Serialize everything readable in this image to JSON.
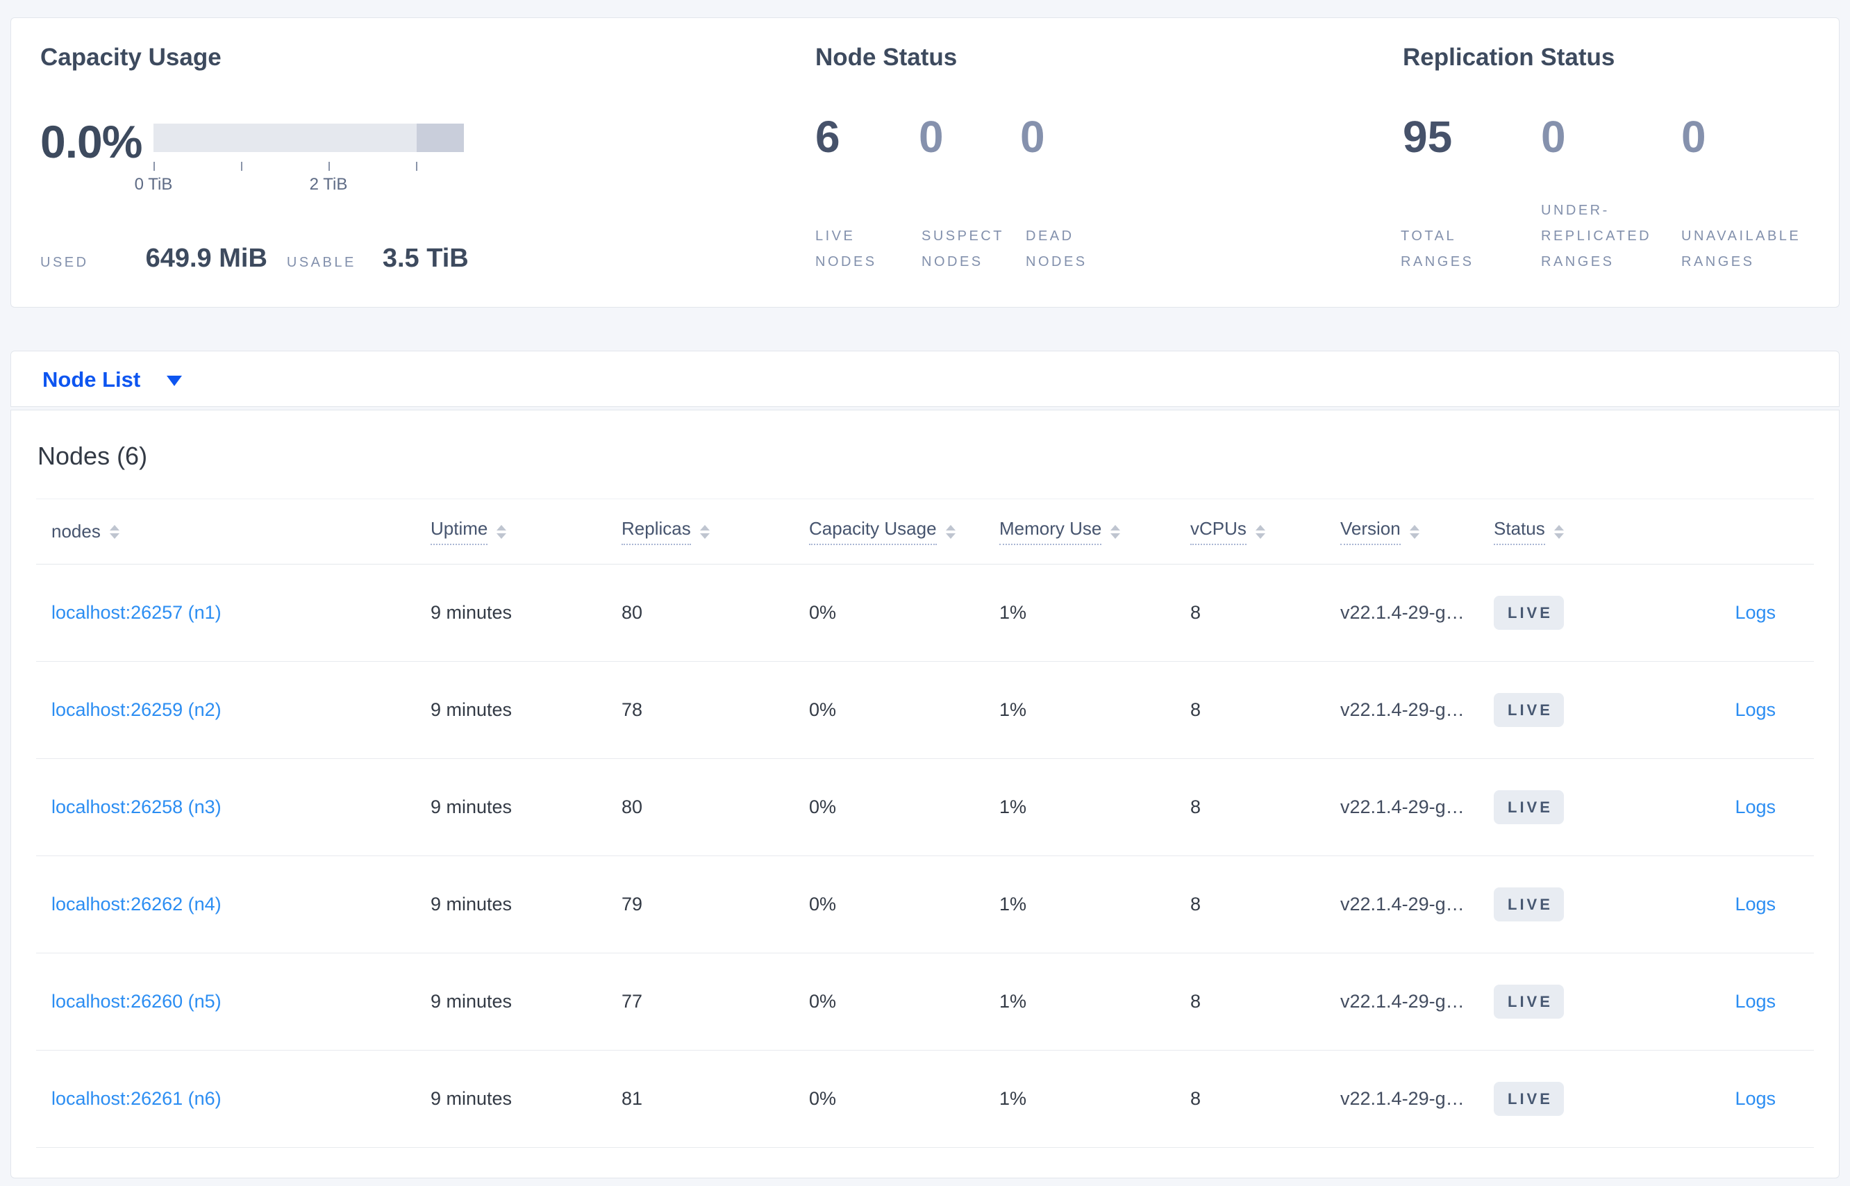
{
  "colors": {
    "page_background": "#f4f6fa",
    "accent_blue": "#0d55f0",
    "link_blue": "#2b8df2",
    "primary_stat": "#46526a",
    "muted_stat": "#8591ad",
    "badge_background": "#e8ecf2",
    "badge_text": "#475872",
    "bar_light": "#e5e8ee",
    "bar_dark": "#c9cedb"
  },
  "overview": {
    "capacity": {
      "title": "Capacity Usage",
      "percent": "0.0%",
      "ticks": [
        "0 TiB",
        "2 TiB"
      ],
      "used_label": "USED",
      "used_value": "649.9 MiB",
      "usable_label": "USABLE",
      "usable_value": "3.5 TiB"
    },
    "node_status": {
      "title": "Node Status",
      "stats": [
        {
          "value": "6",
          "label": "LIVE NODES"
        },
        {
          "value": "0",
          "label": "SUSPECT NODES"
        },
        {
          "value": "0",
          "label": "DEAD NODES"
        }
      ]
    },
    "replication": {
      "title": "Replication Status",
      "stats": [
        {
          "value": "95",
          "label": "TOTAL RANGES"
        },
        {
          "value": "0",
          "label": "UNDER-REPLICATED RANGES"
        },
        {
          "value": "0",
          "label": "UNAVAILABLE RANGES"
        }
      ]
    }
  },
  "view_selector": {
    "label": "Node List"
  },
  "table": {
    "title": "Nodes (6)",
    "columns": [
      "nodes",
      "Uptime",
      "Replicas",
      "Capacity Usage",
      "Memory Use",
      "vCPUs",
      "Version",
      "Status",
      ""
    ],
    "rows": [
      {
        "node": "localhost:26257 (n1)",
        "uptime": "9 minutes",
        "replicas": "80",
        "capacity": "0%",
        "memory": "1%",
        "vcpus": "8",
        "version": "v22.1.4-29-g…",
        "status": "LIVE",
        "logs": "Logs"
      },
      {
        "node": "localhost:26259 (n2)",
        "uptime": "9 minutes",
        "replicas": "78",
        "capacity": "0%",
        "memory": "1%",
        "vcpus": "8",
        "version": "v22.1.4-29-g…",
        "status": "LIVE",
        "logs": "Logs"
      },
      {
        "node": "localhost:26258 (n3)",
        "uptime": "9 minutes",
        "replicas": "80",
        "capacity": "0%",
        "memory": "1%",
        "vcpus": "8",
        "version": "v22.1.4-29-g…",
        "status": "LIVE",
        "logs": "Logs"
      },
      {
        "node": "localhost:26262 (n4)",
        "uptime": "9 minutes",
        "replicas": "79",
        "capacity": "0%",
        "memory": "1%",
        "vcpus": "8",
        "version": "v22.1.4-29-g…",
        "status": "LIVE",
        "logs": "Logs"
      },
      {
        "node": "localhost:26260 (n5)",
        "uptime": "9 minutes",
        "replicas": "77",
        "capacity": "0%",
        "memory": "1%",
        "vcpus": "8",
        "version": "v22.1.4-29-g…",
        "status": "LIVE",
        "logs": "Logs"
      },
      {
        "node": "localhost:26261 (n6)",
        "uptime": "9 minutes",
        "replicas": "81",
        "capacity": "0%",
        "memory": "1%",
        "vcpus": "8",
        "version": "v22.1.4-29-g…",
        "status": "LIVE",
        "logs": "Logs"
      }
    ]
  }
}
